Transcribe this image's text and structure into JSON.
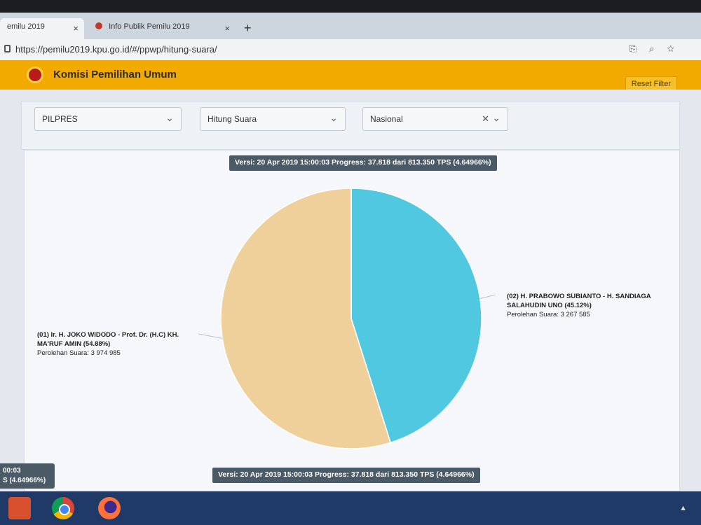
{
  "browser": {
    "tabs": [
      {
        "label": "emilu 2019",
        "close": "×",
        "active": true
      },
      {
        "label": "Info Publik Pemilu 2019",
        "close": "×",
        "active": false
      }
    ],
    "new_tab": "+",
    "url": "https://pemilu2019.kpu.go.id/#/ppwp/hitung-suara/"
  },
  "header": {
    "title": "Komisi Pemilihan Umum",
    "reset_label": "Reset Filter"
  },
  "filters": {
    "election": "PILPRES",
    "mode": "Hitung Suara",
    "region": "Nasional"
  },
  "version_text": "Versi: 20 Apr 2019 15:00:03 Progress: 37.818 dari 813.350 TPS (4.64966%)",
  "left_popup": {
    "line1": "00:03",
    "line2": "S (4.64966%)"
  },
  "chart_data": {
    "type": "pie",
    "slices": [
      {
        "label_line1": "(01) Ir. H. JOKO WIDODO - Prof. Dr. (H.C) KH.",
        "label_line2": "MA'RUF AMIN (54.88%)",
        "votes_text": "Perolehan Suara: 3 974 985",
        "percent": 54.88,
        "color": "#f0d09a"
      },
      {
        "label_line1": "(02) H. PRABOWO SUBIANTO - H. SANDIAGA",
        "label_line2": "SALAHUDIN UNO (45.12%)",
        "votes_text": "Perolehan Suara: 3 267 585",
        "percent": 45.12,
        "color": "#4fc8e0"
      }
    ]
  }
}
